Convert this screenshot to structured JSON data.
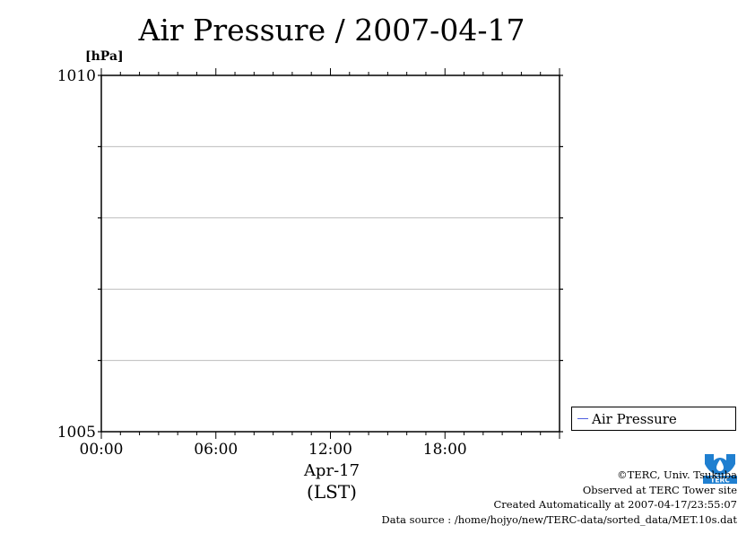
{
  "chart_data": {
    "type": "line",
    "title": "Air Pressure / 2007-04-17",
    "ylabel": "[hPa]",
    "ylim": [
      1005,
      1010
    ],
    "y_ticks": [
      1005,
      1006,
      1007,
      1008,
      1009,
      1010
    ],
    "y_tick_labels": [
      "1005",
      "1010"
    ],
    "xlim_hours": [
      0,
      24
    ],
    "x_tick_labels": [
      "00:00",
      "06:00",
      "12:00",
      "18:00"
    ],
    "x_date_label": "Apr-17",
    "x_axis_label": "(LST)",
    "grid": true,
    "legend_position": "right-bottom",
    "series": [
      {
        "name": "Air Pressure",
        "color": "#5060e0",
        "points": []
      }
    ]
  },
  "footer": {
    "copyright": "©TERC, Univ. Tsukuba",
    "observed": "Observed at TERC Tower site",
    "created": "Created Automatically at 2007-04-17/23:55:07",
    "source": "Data source : /home/hojyo/new/TERC-data/sorted_data/MET.10s.dat"
  },
  "logo": {
    "icon": "terc-logo-icon",
    "text": "TERC",
    "color": "#1f7fd0"
  }
}
